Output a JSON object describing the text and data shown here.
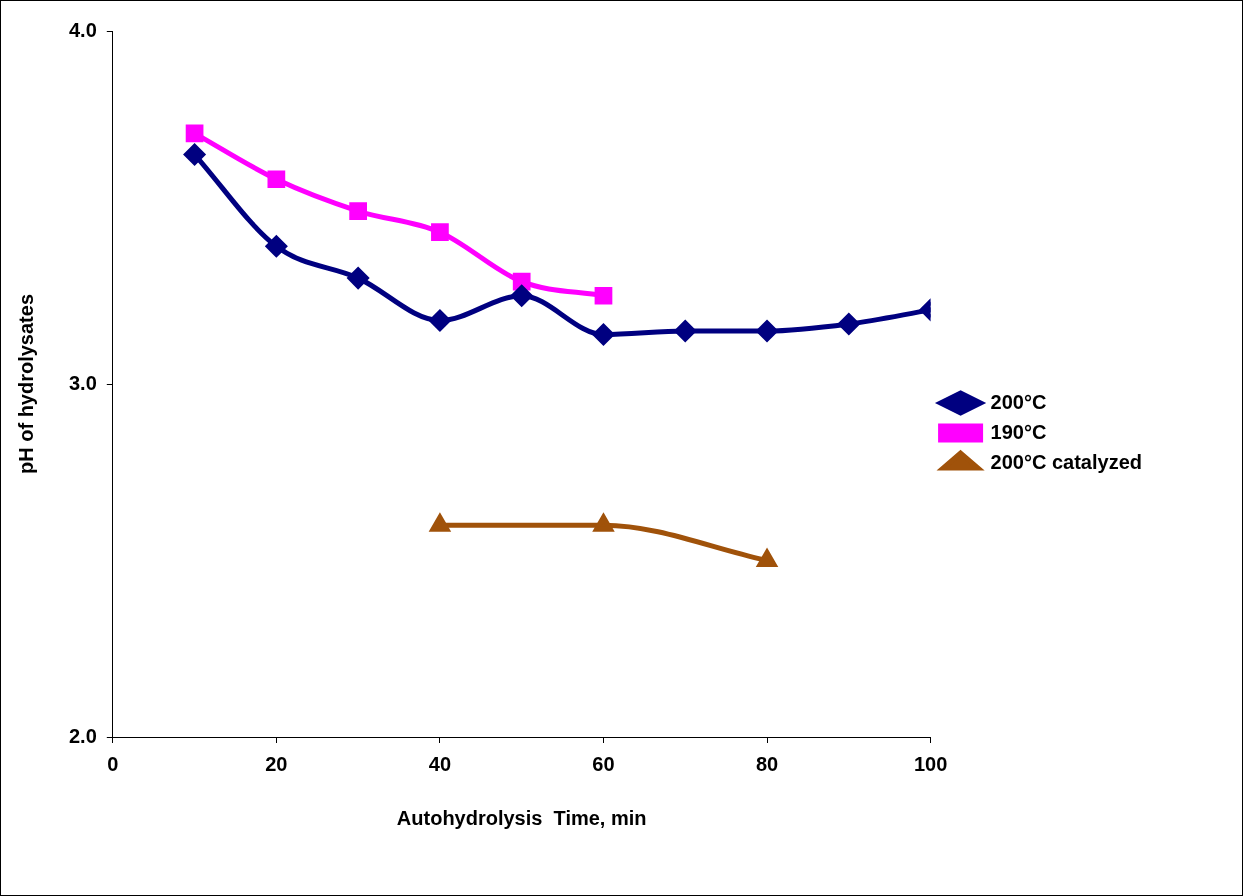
{
  "chart_data": {
    "type": "line",
    "xlabel": "Autohydrolysis  Time, min",
    "ylabel": "pH of hydrolysates",
    "xlim": [
      0,
      100
    ],
    "xticks": [
      0,
      20,
      40,
      60,
      80,
      100
    ],
    "ylim": [
      2,
      4
    ],
    "yticks": [
      {
        "value": 2,
        "label": "2.0"
      },
      {
        "value": 3,
        "label": "3.0"
      },
      {
        "value": 4,
        "label": "4.0"
      }
    ],
    "grid": false,
    "legend": "right",
    "series": [
      {
        "name": "200°C",
        "color": "#000080",
        "marker": "diamond",
        "x": [
          10,
          20,
          30,
          40,
          50,
          60,
          70,
          80,
          90,
          100
        ],
        "values": [
          3.65,
          3.39,
          3.3,
          3.18,
          3.25,
          3.14,
          3.15,
          3.15,
          3.17,
          3.21
        ]
      },
      {
        "name": "190°C",
        "color": "#ff00ff",
        "marker": "square",
        "x": [
          10,
          20,
          30,
          40,
          50,
          60
        ],
        "values": [
          3.71,
          3.58,
          3.49,
          3.43,
          3.29,
          3.25
        ]
      },
      {
        "name": "200°C catalyzed",
        "color": "#a0520a",
        "marker": "triangle",
        "x": [
          40,
          60,
          80
        ],
        "values": [
          2.6,
          2.6,
          2.5
        ]
      }
    ]
  }
}
